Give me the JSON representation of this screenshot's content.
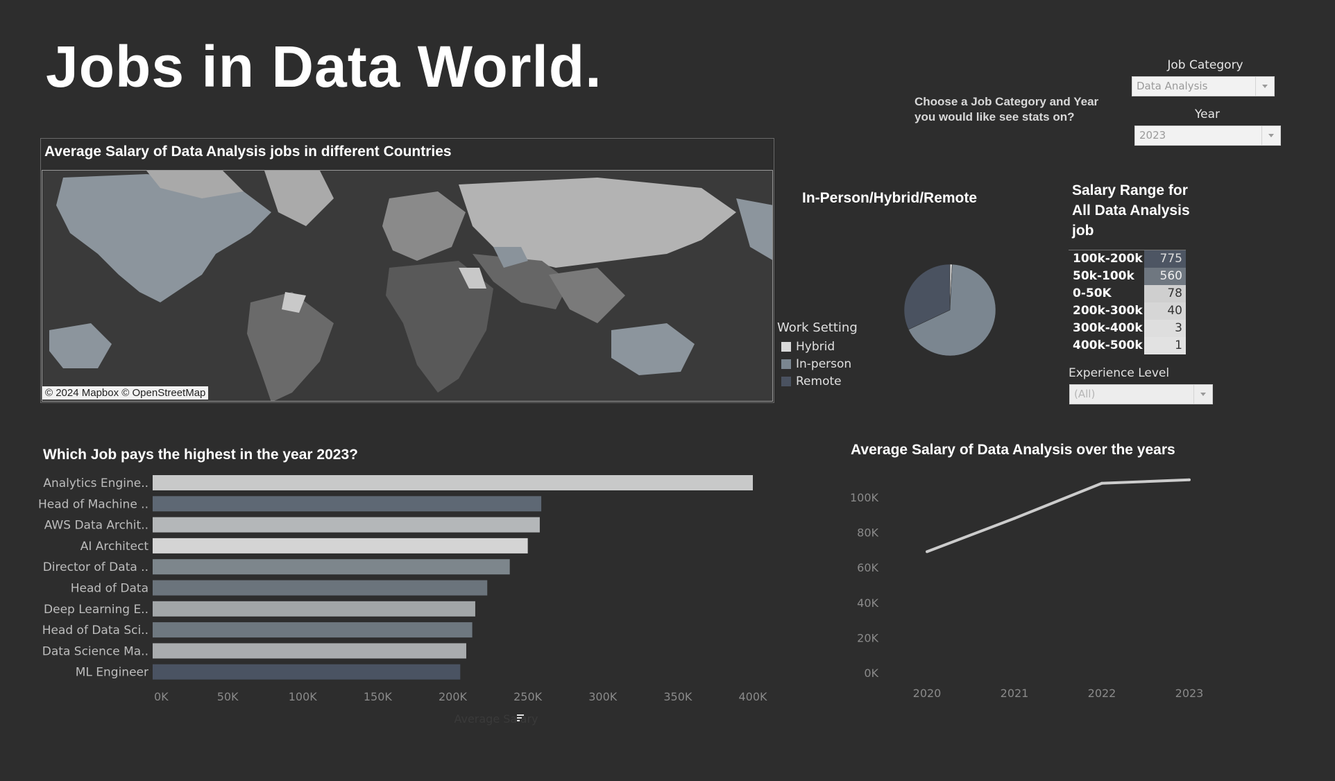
{
  "header": {
    "title": "Jobs in Data World.",
    "prompt": "Choose a Job Category and Year you would like see stats on?"
  },
  "filters": {
    "job_category_label": "Job Category",
    "job_category_value": "Data Analysis",
    "year_label": "Year",
    "year_value": "2023",
    "experience_label": "Experience Level",
    "experience_value": "(All)"
  },
  "map": {
    "title": "Average Salary of Data Analysis jobs in different Countries",
    "credit": "© 2024 Mapbox © OpenStreetMap"
  },
  "pie": {
    "title": "In-Person/Hybrid/Remote",
    "legend_title": "Work Setting",
    "legend": [
      {
        "label": "Hybrid",
        "color": "#d9d9d9"
      },
      {
        "label": "In-person",
        "color": "#7b8690"
      },
      {
        "label": "Remote",
        "color": "#4a5260"
      }
    ]
  },
  "salary_range": {
    "title": "Salary Range for All Data Analysis job",
    "rows": [
      {
        "label": "100k-200k",
        "count": "775",
        "bg": "#4d5563",
        "fg": "#dddddd"
      },
      {
        "label": "50k-100k",
        "count": "560",
        "bg": "#6f7780",
        "fg": "#eeeeee"
      },
      {
        "label": "0-50K",
        "count": "78",
        "bg": "#cfcfcf",
        "fg": "#333333"
      },
      {
        "label": "200k-300k",
        "count": "40",
        "bg": "#d6d6d6",
        "fg": "#333333"
      },
      {
        "label": "300k-400k",
        "count": "3",
        "bg": "#dedede",
        "fg": "#333333"
      },
      {
        "label": "400k-500k",
        "count": "1",
        "bg": "#e2e2e2",
        "fg": "#333333"
      }
    ]
  },
  "chart_data": [
    {
      "type": "pie",
      "labels": [
        "Hybrid",
        "In-person",
        "Remote"
      ],
      "values": [
        0.8,
        67.2,
        32.0
      ],
      "colors": [
        "#d9d9d9",
        "#7b8690",
        "#4a5260"
      ]
    },
    {
      "type": "bar",
      "orientation": "horizontal",
      "title": "Which Job pays the highest in the year 2023?",
      "categories": [
        "Analytics Engine..",
        "Head of Machine ..",
        "AWS Data Archit..",
        "AI Architect",
        "Director of Data ..",
        "Head of Data",
        "Deep Learning E..",
        "Head of Data Sci..",
        "Data Science Ma..",
        "ML Engineer"
      ],
      "values": [
        400000,
        259000,
        258000,
        250000,
        238000,
        223000,
        215000,
        213000,
        209000,
        205000
      ],
      "colors": [
        "#c8c9c9",
        "#5e6874",
        "#b4b7b9",
        "#d4d4d4",
        "#7d868c",
        "#6b747c",
        "#a2a6a8",
        "#6e7880",
        "#a9acae",
        "#4a5362"
      ],
      "xlabel": "Average Salary",
      "xlim": [
        0,
        400000
      ],
      "xticks": [
        0,
        50000,
        100000,
        150000,
        200000,
        250000,
        300000,
        350000,
        400000
      ],
      "xtick_labels": [
        "0K",
        "50K",
        "100K",
        "150K",
        "200K",
        "250K",
        "300K",
        "350K",
        "400K"
      ]
    },
    {
      "type": "line",
      "title": "Average Salary of Data Analysis over the years",
      "x": [
        "2020",
        "2021",
        "2022",
        "2023"
      ],
      "values": [
        69000,
        88000,
        108000,
        110000
      ],
      "ylim": [
        0,
        100000
      ],
      "yticks": [
        0,
        20000,
        40000,
        60000,
        80000,
        100000
      ],
      "ytick_labels": [
        "0K",
        "20K",
        "40K",
        "60K",
        "80K",
        "100K"
      ],
      "color": "#cccccc"
    }
  ]
}
